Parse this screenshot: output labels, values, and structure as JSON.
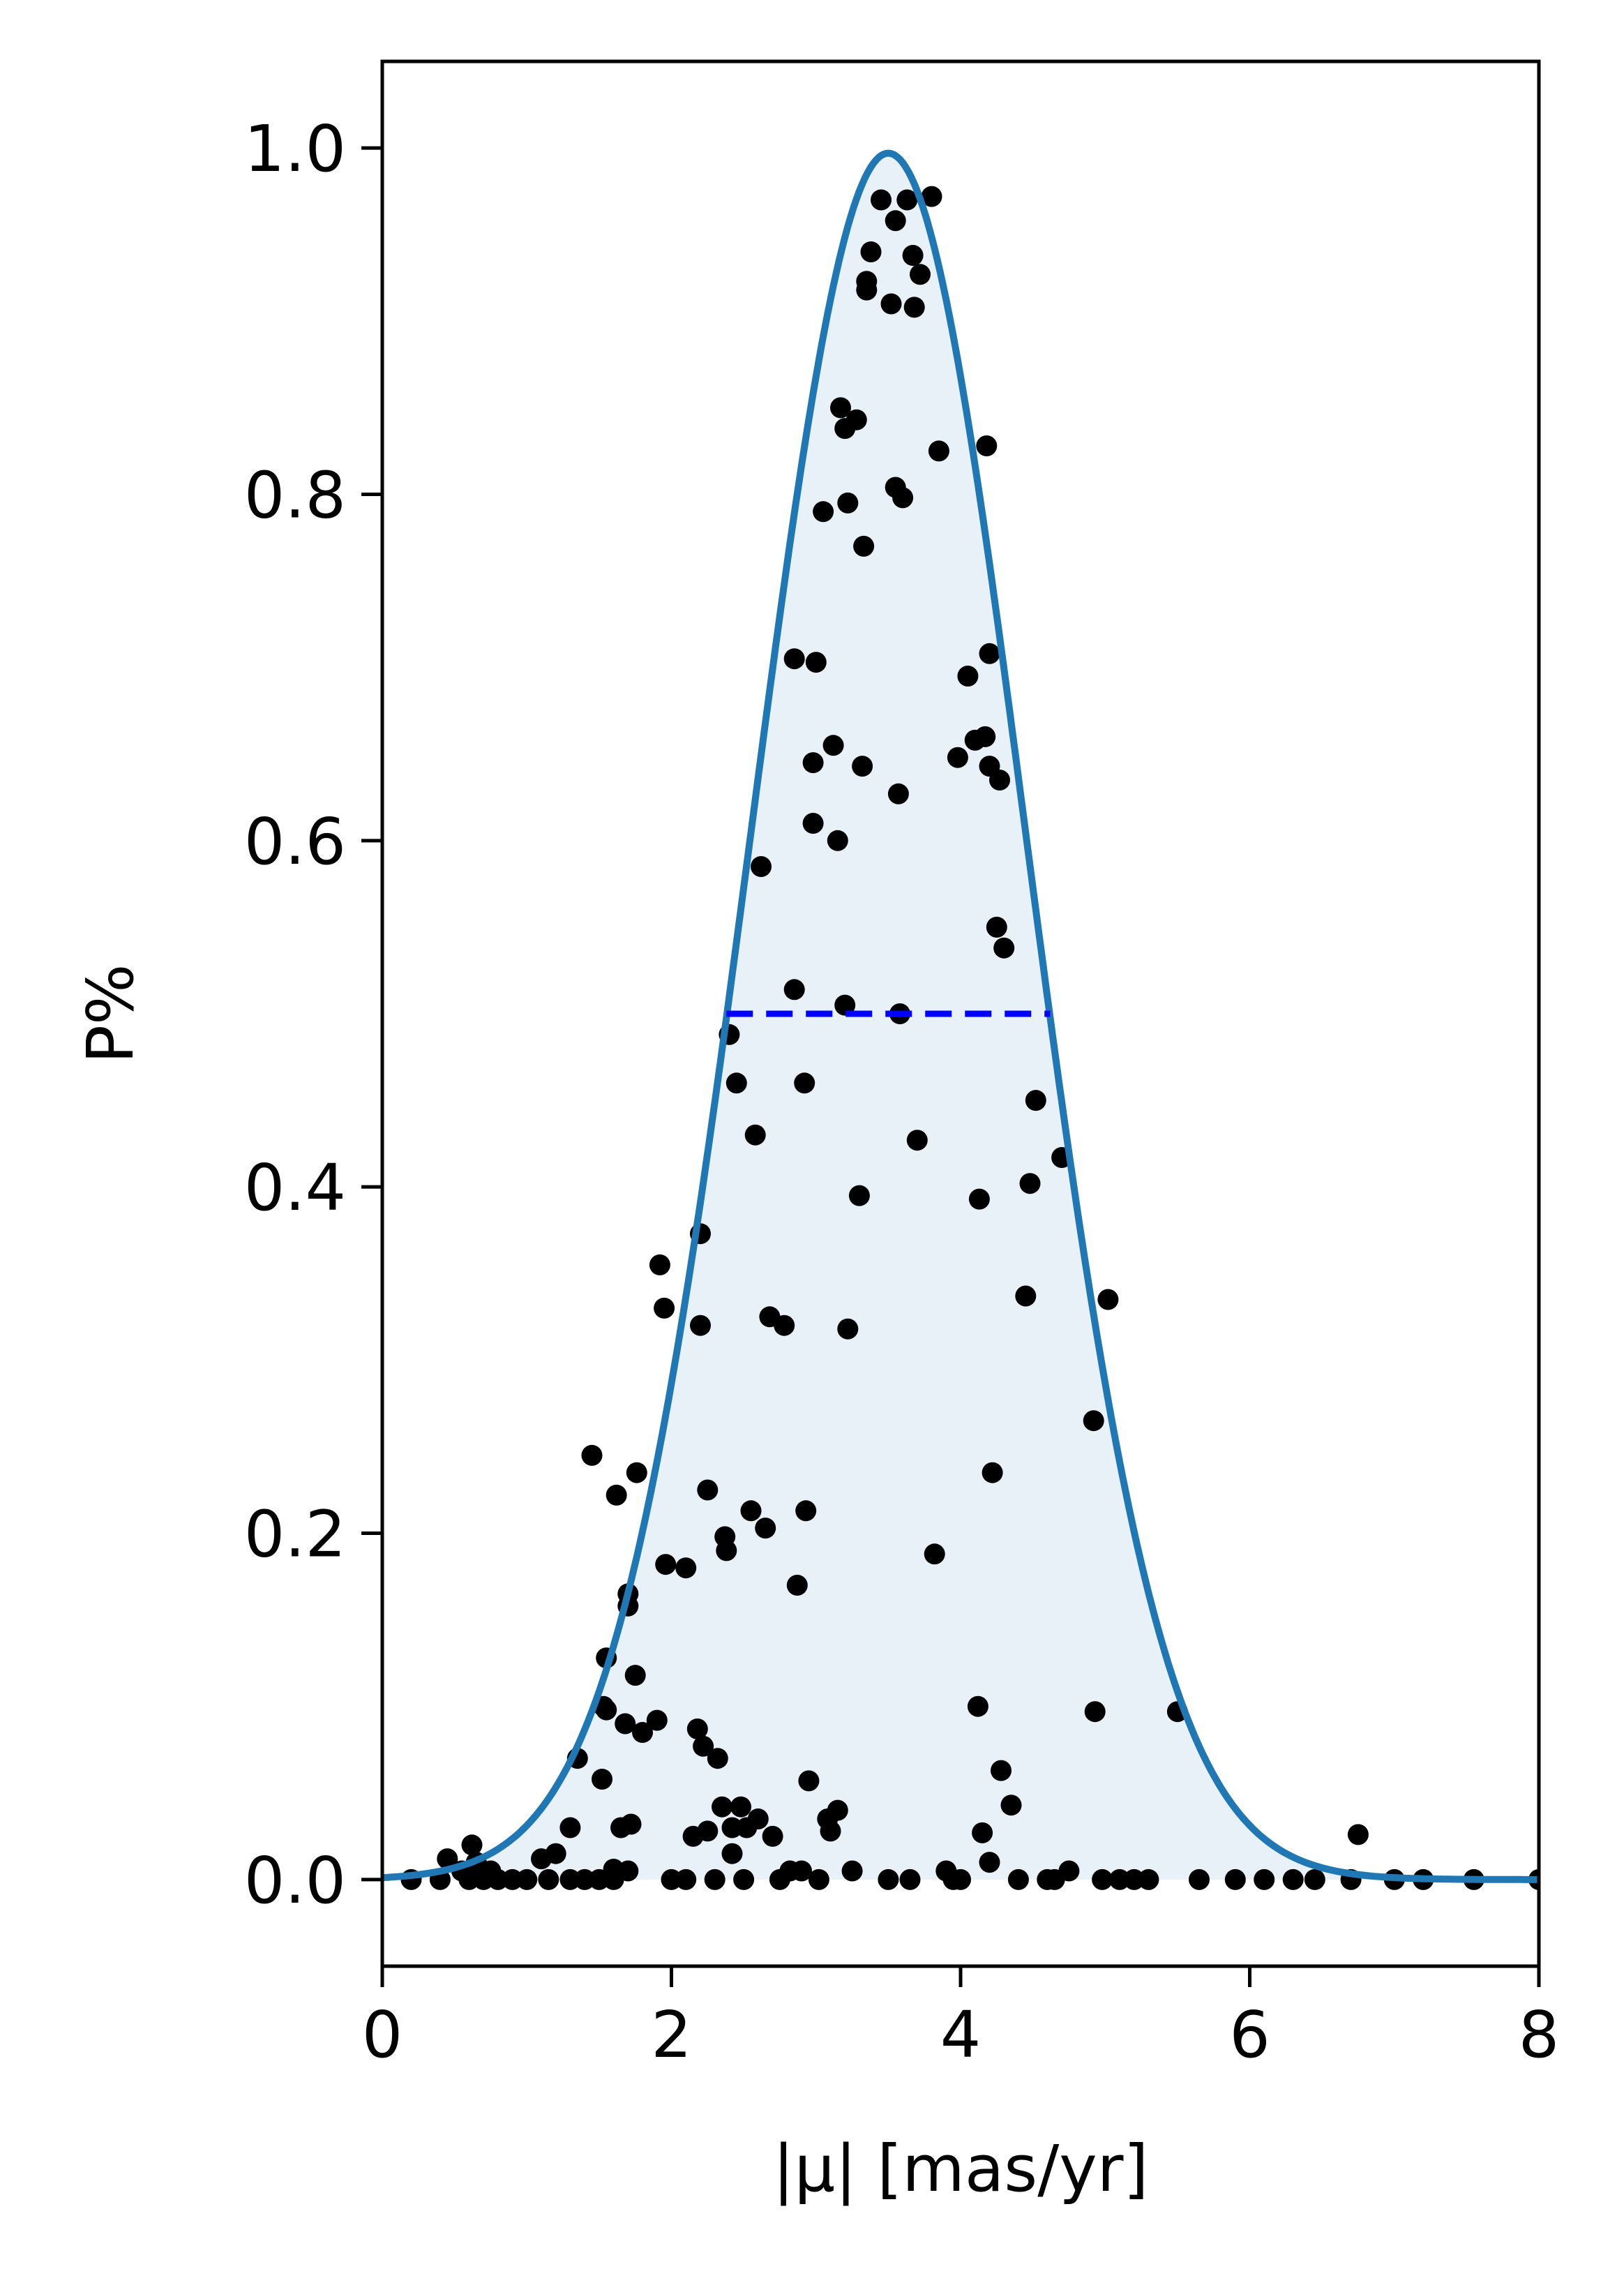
{
  "chart_data": {
    "type": "scatter",
    "xlabel": "|μ| [mas/yr]",
    "ylabel": "P%",
    "xlim": [
      0,
      8
    ],
    "ylim": [
      -0.05,
      1.05
    ],
    "xticks": [
      "0",
      "2",
      "4",
      "6",
      "8"
    ],
    "yticks": [
      "0.0",
      "0.2",
      "0.4",
      "0.6",
      "0.8",
      "1.0"
    ],
    "grid": false,
    "colors": {
      "curve": "#1f77b4",
      "fill": "#e8f0f8",
      "points": "#000000",
      "halfmax_line": "#0000ff"
    },
    "curve": {
      "type": "gaussian",
      "amplitude": 0.997,
      "mean": 3.5,
      "sigma": 0.95
    },
    "half_max_line": {
      "y": 0.5,
      "x_start": 2.38,
      "x_end": 4.62
    },
    "points": [
      [
        0.2,
        0.0
      ],
      [
        0.4,
        0.0
      ],
      [
        0.45,
        0.012
      ],
      [
        0.55,
        0.005
      ],
      [
        0.6,
        0.0
      ],
      [
        0.62,
        0.02
      ],
      [
        0.65,
        0.01
      ],
      [
        0.7,
        0.0
      ],
      [
        0.75,
        0.005
      ],
      [
        0.8,
        0.0
      ],
      [
        0.9,
        0.0
      ],
      [
        1.0,
        0.0
      ],
      [
        1.1,
        0.012
      ],
      [
        1.15,
        0.0
      ],
      [
        1.2,
        0.015
      ],
      [
        1.3,
        0.0
      ],
      [
        1.3,
        0.03
      ],
      [
        1.35,
        0.07
      ],
      [
        1.4,
        0.0
      ],
      [
        1.45,
        0.245
      ],
      [
        1.5,
        0.0
      ],
      [
        1.52,
        0.058
      ],
      [
        1.53,
        0.1
      ],
      [
        1.55,
        0.128
      ],
      [
        1.55,
        0.098
      ],
      [
        1.6,
        0.0
      ],
      [
        1.6,
        0.006
      ],
      [
        1.62,
        0.222
      ],
      [
        1.65,
        0.03
      ],
      [
        1.68,
        0.09
      ],
      [
        1.7,
        0.005
      ],
      [
        1.7,
        0.165
      ],
      [
        1.7,
        0.158
      ],
      [
        1.72,
        0.032
      ],
      [
        1.75,
        0.118
      ],
      [
        1.76,
        0.235
      ],
      [
        1.8,
        0.085
      ],
      [
        1.9,
        0.092
      ],
      [
        1.92,
        0.355
      ],
      [
        1.95,
        0.33
      ],
      [
        1.96,
        0.182
      ],
      [
        2.0,
        0.0
      ],
      [
        2.1,
        0.0
      ],
      [
        2.1,
        0.18
      ],
      [
        2.15,
        0.025
      ],
      [
        2.18,
        0.087
      ],
      [
        2.2,
        0.373
      ],
      [
        2.2,
        0.32
      ],
      [
        2.22,
        0.077
      ],
      [
        2.25,
        0.028
      ],
      [
        2.25,
        0.225
      ],
      [
        2.3,
        0.0
      ],
      [
        2.32,
        0.07
      ],
      [
        2.35,
        0.042
      ],
      [
        2.37,
        0.198
      ],
      [
        2.38,
        0.19
      ],
      [
        2.4,
        0.488
      ],
      [
        2.42,
        0.015
      ],
      [
        2.42,
        0.03
      ],
      [
        2.45,
        0.46
      ],
      [
        2.48,
        0.042
      ],
      [
        2.5,
        0.0
      ],
      [
        2.52,
        0.03
      ],
      [
        2.55,
        0.213
      ],
      [
        2.58,
        0.43
      ],
      [
        2.6,
        0.035
      ],
      [
        2.62,
        0.585
      ],
      [
        2.65,
        0.203
      ],
      [
        2.68,
        0.325
      ],
      [
        2.7,
        0.025
      ],
      [
        2.75,
        0.0
      ],
      [
        2.78,
        0.32
      ],
      [
        2.82,
        0.005
      ],
      [
        2.85,
        0.514
      ],
      [
        2.85,
        0.705
      ],
      [
        2.87,
        0.17
      ],
      [
        2.9,
        0.005
      ],
      [
        2.92,
        0.46
      ],
      [
        2.93,
        0.213
      ],
      [
        2.95,
        0.057
      ],
      [
        2.98,
        0.61
      ],
      [
        2.98,
        0.645
      ],
      [
        3.0,
        0.703
      ],
      [
        3.02,
        0.0
      ],
      [
        3.05,
        0.79
      ],
      [
        3.08,
        0.035
      ],
      [
        3.1,
        0.028
      ],
      [
        3.12,
        0.655
      ],
      [
        3.15,
        0.6
      ],
      [
        3.15,
        0.04
      ],
      [
        3.17,
        0.85
      ],
      [
        3.2,
        0.838
      ],
      [
        3.2,
        0.505
      ],
      [
        3.22,
        0.318
      ],
      [
        3.22,
        0.795
      ],
      [
        3.25,
        0.005
      ],
      [
        3.28,
        0.843
      ],
      [
        3.3,
        0.395
      ],
      [
        3.32,
        0.643
      ],
      [
        3.33,
        0.77
      ],
      [
        3.35,
        0.918
      ],
      [
        3.35,
        0.923
      ],
      [
        3.38,
        0.94
      ],
      [
        3.45,
        0.97
      ],
      [
        3.5,
        0.0
      ],
      [
        3.52,
        0.91
      ],
      [
        3.55,
        0.958
      ],
      [
        3.55,
        0.804
      ],
      [
        3.57,
        0.627
      ],
      [
        3.58,
        0.5
      ],
      [
        3.6,
        0.798
      ],
      [
        3.63,
        0.97
      ],
      [
        3.65,
        0.0
      ],
      [
        3.67,
        0.938
      ],
      [
        3.68,
        0.908
      ],
      [
        3.7,
        0.427
      ],
      [
        3.72,
        0.927
      ],
      [
        3.8,
        0.972
      ],
      [
        3.82,
        0.188
      ],
      [
        3.85,
        0.825
      ],
      [
        3.9,
        0.005
      ],
      [
        3.95,
        0.0
      ],
      [
        3.98,
        0.648
      ],
      [
        4.0,
        0.0
      ],
      [
        4.05,
        0.695
      ],
      [
        4.1,
        0.658
      ],
      [
        4.12,
        0.1
      ],
      [
        4.13,
        0.393
      ],
      [
        4.15,
        0.027
      ],
      [
        4.17,
        0.66
      ],
      [
        4.18,
        0.828
      ],
      [
        4.2,
        0.708
      ],
      [
        4.2,
        0.643
      ],
      [
        4.2,
        0.01
      ],
      [
        4.22,
        0.235
      ],
      [
        4.25,
        0.55
      ],
      [
        4.27,
        0.635
      ],
      [
        4.28,
        0.063
      ],
      [
        4.3,
        0.538
      ],
      [
        4.35,
        0.043
      ],
      [
        4.4,
        0.0
      ],
      [
        4.45,
        0.337
      ],
      [
        4.48,
        0.402
      ],
      [
        4.52,
        0.45
      ],
      [
        4.6,
        0.0
      ],
      [
        4.65,
        0.0
      ],
      [
        4.7,
        0.417
      ],
      [
        4.75,
        0.005
      ],
      [
        4.92,
        0.265
      ],
      [
        4.93,
        0.097
      ],
      [
        4.98,
        0.0
      ],
      [
        5.02,
        0.335
      ],
      [
        5.1,
        0.0
      ],
      [
        5.2,
        0.0
      ],
      [
        5.3,
        0.0
      ],
      [
        5.5,
        0.097
      ],
      [
        5.65,
        0.0
      ],
      [
        5.9,
        0.0
      ],
      [
        6.1,
        0.0
      ],
      [
        6.3,
        0.0
      ],
      [
        6.45,
        0.0
      ],
      [
        6.7,
        0.0
      ],
      [
        6.75,
        0.026
      ],
      [
        7.0,
        0.0
      ],
      [
        7.2,
        0.0
      ],
      [
        7.55,
        0.0
      ],
      [
        8.0,
        0.0
      ]
    ]
  }
}
